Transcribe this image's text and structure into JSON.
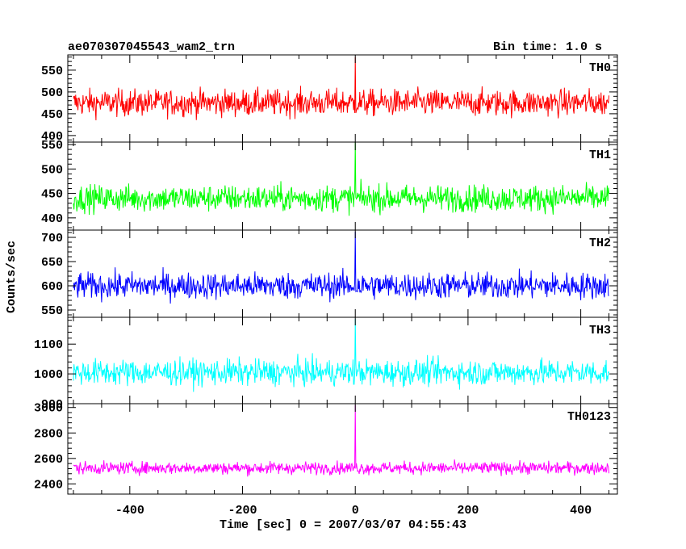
{
  "title_left": "ae070307045543_wam2_trn",
  "title_right": "Bin time: 1.0 s",
  "chart_data": {
    "type": "line",
    "title": "ae070307045543_wam2_trn",
    "subtitle": "Bin time: 1.0 s",
    "xlabel": "Time [sec] 0 = 2007/03/07 04:55:43",
    "ylabel": "Counts/sec",
    "xlim": [
      -510,
      465
    ],
    "x_ticks": [
      -400,
      -200,
      0,
      200,
      400
    ],
    "x_range": [
      -500,
      450
    ],
    "bin_time": 1.0,
    "grid": false,
    "panels": [
      {
        "name": "TH0",
        "color": "#ff0000",
        "ylim": [
          385,
          585
        ],
        "y_ticks": [
          400,
          450,
          500,
          550
        ],
        "mean": 475,
        "amp": 28,
        "spike_y": 580,
        "max": 580
      },
      {
        "name": "TH1",
        "color": "#00ff00",
        "ylim": [
          375,
          555
        ],
        "y_ticks": [
          400,
          450,
          500,
          550
        ],
        "mean": 440,
        "amp": 25,
        "spike_y": 555,
        "max": 555
      },
      {
        "name": "TH2",
        "color": "#0000ff",
        "ylim": [
          535,
          715
        ],
        "y_ticks": [
          550,
          600,
          650,
          700
        ],
        "mean": 600,
        "amp": 25,
        "spike_y": 712,
        "max": 712
      },
      {
        "name": "TH3",
        "color": "#00ffff",
        "ylim": [
          900,
          1190
        ],
        "y_ticks": [
          900,
          1000,
          1100
        ],
        "mean": 1005,
        "amp": 40,
        "spike_y": 1185,
        "max": 1185
      },
      {
        "name": "TH0123",
        "color": "#ff00ff",
        "ylim": [
          2320,
          3030
        ],
        "y_ticks": [
          2400,
          2600,
          2800,
          3000
        ],
        "mean": 2525,
        "amp": 45,
        "spike_y": 3020,
        "max": 3020
      }
    ]
  }
}
